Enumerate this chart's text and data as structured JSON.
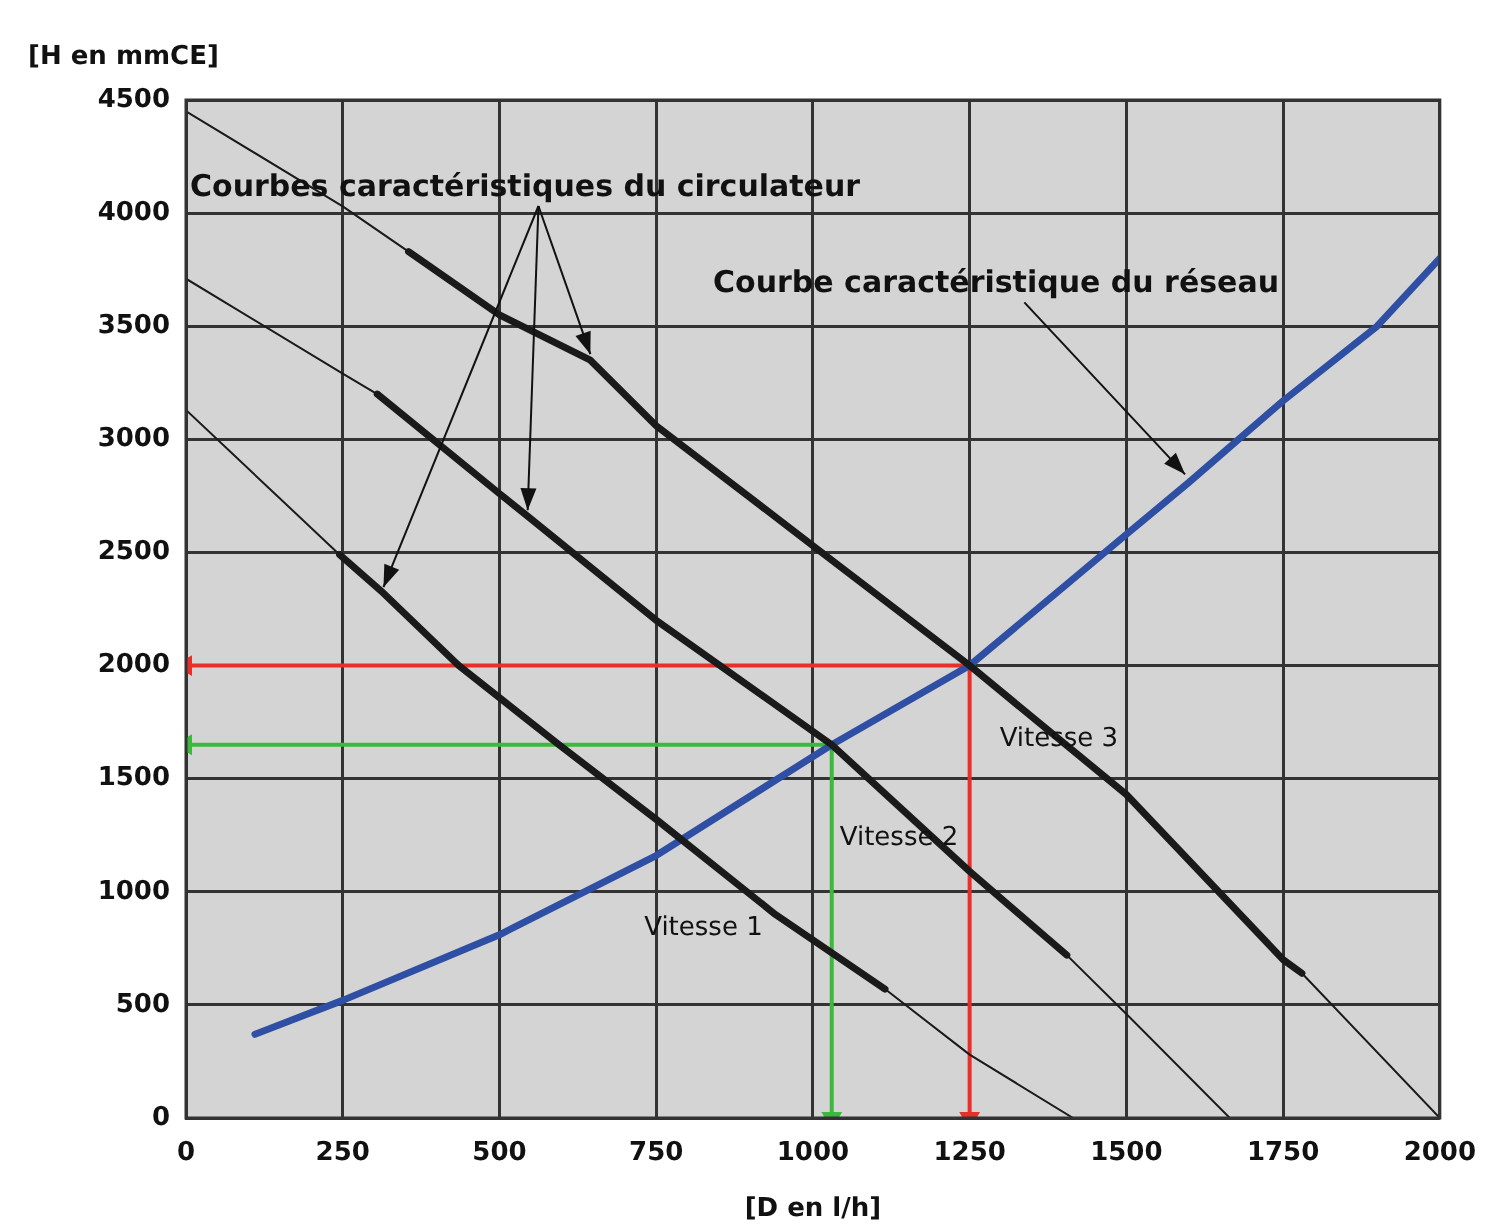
{
  "chart_data": {
    "type": "line",
    "xlabel": "[D en l/h]",
    "ylabel": "[H en mmCE]",
    "xlim": [
      0,
      2000
    ],
    "xticks": [
      0,
      250,
      500,
      750,
      1000,
      1250,
      1500,
      1750,
      2000
    ],
    "ylim": [
      0,
      4500
    ],
    "yticks": [
      0,
      500,
      1000,
      1500,
      2000,
      2500,
      3000,
      3500,
      4000,
      4500
    ],
    "grid": true,
    "legend": false,
    "marker": "none",
    "series": [
      {
        "color": "#1a1a1a",
        "x": [
          0,
          250,
          355
        ],
        "values": [
          4450,
          4030,
          3830
        ]
      },
      {
        "name": "Vitesse 3",
        "color": "#1a1a1a",
        "x": [
          355,
          500,
          645,
          750,
          1000,
          1250,
          1500,
          1750,
          1780
        ],
        "values": [
          3830,
          3550,
          3350,
          3060,
          2530,
          2000,
          1430,
          700,
          640
        ]
      },
      {
        "color": "#1a1a1a",
        "x": [
          1780,
          2000
        ],
        "values": [
          640,
          0
        ]
      },
      {
        "color": "#1a1a1a",
        "x": [
          0,
          250,
          305
        ],
        "values": [
          3710,
          3290,
          3200
        ]
      },
      {
        "name": "Vitesse 2",
        "color": "#1a1a1a",
        "x": [
          305,
          500,
          545,
          750,
          1030,
          1250,
          1405
        ],
        "values": [
          3200,
          2760,
          2660,
          2200,
          1650,
          1090,
          720
        ]
      },
      {
        "color": "#1a1a1a",
        "x": [
          1405,
          1500,
          1665
        ],
        "values": [
          720,
          460,
          0
        ]
      },
      {
        "color": "#1a1a1a",
        "x": [
          0,
          245
        ],
        "values": [
          3130,
          2490
        ]
      },
      {
        "name": "Vitesse 1",
        "color": "#1a1a1a",
        "x": [
          245,
          315,
          435,
          595,
          750,
          940,
          1115
        ],
        "values": [
          2490,
          2320,
          2000,
          1650,
          1320,
          900,
          570
        ]
      },
      {
        "color": "#1a1a1a",
        "x": [
          1115,
          1250,
          1415
        ],
        "values": [
          570,
          280,
          0
        ]
      },
      {
        "name": "Courbe caractéristique du réseau",
        "color": "#2e4fa3",
        "x": [
          110,
          250,
          500,
          750,
          1030,
          1250,
          1500,
          1600,
          1750,
          1900,
          2000
        ],
        "values": [
          370,
          520,
          810,
          1160,
          1650,
          2000,
          2580,
          2810,
          3170,
          3500,
          3800
        ]
      },
      {
        "color": "#e8302a",
        "marker": "triangle",
        "x": [
          0,
          1250,
          1250
        ],
        "values": [
          2000,
          2000,
          0
        ]
      },
      {
        "color": "#3cb83c",
        "marker": "triangle",
        "x": [
          0,
          1030,
          1030
        ],
        "values": [
          1650,
          1650,
          0
        ]
      }
    ],
    "annotations": [
      {
        "text": "Courbes caractéristiques du circulateur",
        "x": 645,
        "y": 3350
      }
    ]
  }
}
